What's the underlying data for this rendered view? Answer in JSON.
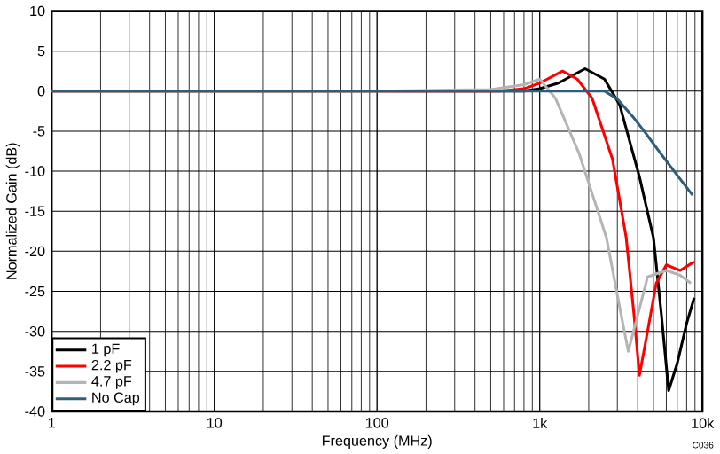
{
  "chart_data": {
    "type": "line",
    "xlabel": "Frequency (MHz)",
    "ylabel": "Normalized Gain (dB)",
    "log": "x",
    "grid": true,
    "legend": "bottom left",
    "annotations": [
      "C036"
    ],
    "xlim": [
      1,
      10000
    ],
    "ylim": [
      -40,
      10
    ],
    "xticks": [
      1,
      10,
      100,
      {
        "value": 1000,
        "label": "1k"
      },
      {
        "value": 10000,
        "label": "10k"
      }
    ],
    "yticks": [
      -40,
      -35,
      -30,
      -25,
      -20,
      -15,
      -10,
      -5,
      0,
      5,
      10
    ],
    "series": [
      {
        "name": "1 pF",
        "color": "#000000",
        "x": [
          1,
          100,
          800,
          1000,
          1300,
          1900,
          2500,
          3100,
          4100,
          5000,
          5600,
          6200,
          7000,
          8000,
          8900
        ],
        "values": [
          0,
          0,
          0,
          0.3,
          1,
          2.8,
          1.5,
          -1.7,
          -10.7,
          -18.3,
          -28,
          -37.4,
          -34,
          -29,
          -25.8
        ]
      },
      {
        "name": "2.2 pF",
        "color": "#ff0000",
        "x": [
          1,
          100,
          560,
          800,
          1000,
          1380,
          1700,
          2100,
          2800,
          3400,
          3800,
          4100,
          4600,
          5200,
          6000,
          7300,
          8900
        ],
        "values": [
          0,
          0,
          0,
          0.3,
          1,
          2.5,
          1.5,
          -0.9,
          -8.5,
          -18.3,
          -28,
          -35.5,
          -30,
          -24,
          -21.7,
          -22.4,
          -21.3
        ]
      },
      {
        "name": "4.7 pF",
        "color": "#b4b4b4",
        "x": [
          1,
          100,
          500,
          800,
          1000,
          1250,
          1740,
          2570,
          3100,
          3500,
          4000,
          4600,
          6000,
          7300,
          8500
        ],
        "values": [
          0,
          0,
          0.2,
          0.8,
          1.5,
          -0.9,
          -7.7,
          -18.3,
          -27,
          -32.5,
          -28,
          -23.2,
          -22.4,
          -23,
          -24
        ]
      },
      {
        "name": "No Cap",
        "color": "#2e5f7a",
        "x": [
          1,
          100,
          1000,
          2500,
          3000,
          3740,
          4500,
          5500,
          7000,
          8700
        ],
        "values": [
          0,
          0,
          0,
          0,
          -1,
          -3.2,
          -5.3,
          -7.7,
          -10.5,
          -13
        ]
      }
    ]
  }
}
